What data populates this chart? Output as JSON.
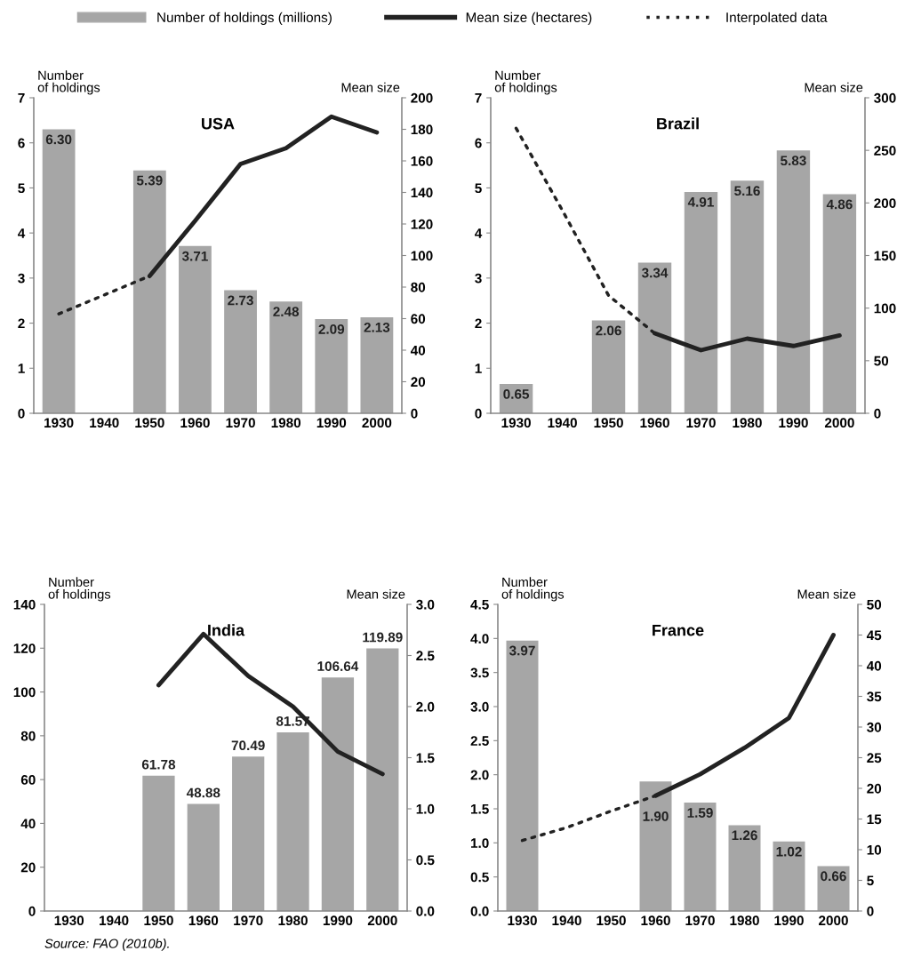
{
  "chart_data": [
    {
      "type": "bar",
      "title": "USA",
      "ylabel": "Number\nof holdings",
      "y2label": "Mean size",
      "legend": "top",
      "grid": false,
      "categories": [
        "1930",
        "1940",
        "1950",
        "1960",
        "1970",
        "1980",
        "1990",
        "2000"
      ],
      "ylim": [
        0,
        7
      ],
      "yticks": [
        0,
        1,
        2,
        3,
        4,
        5,
        6,
        7
      ],
      "y2lim": [
        0,
        200
      ],
      "y2ticks": [
        0,
        20,
        40,
        60,
        80,
        100,
        120,
        140,
        160,
        180,
        200
      ],
      "series": [
        {
          "name": "Number of holdings (millions)",
          "color": "#a6a6a6",
          "values": [
            6.3,
            null,
            5.39,
            3.71,
            2.73,
            2.48,
            2.09,
            2.13
          ],
          "value_labels": [
            "6.30",
            null,
            "5.39",
            "3.71",
            "2.73",
            "2.48",
            "2.09",
            "2.13"
          ]
        },
        {
          "name": "Mean size (hectares)",
          "type": "line",
          "axis": "y2",
          "color": "#222222",
          "line_style": "solid",
          "values": [
            null,
            null,
            87,
            122,
            158,
            168,
            188,
            178
          ]
        },
        {
          "name": "Interpolated data",
          "type": "line",
          "axis": "y2",
          "color": "#222222",
          "line_style": "dotted",
          "values": [
            63,
            75,
            87,
            null,
            null,
            null,
            null,
            null
          ]
        }
      ]
    },
    {
      "type": "bar",
      "title": "Brazil",
      "ylabel": "Number\nof holdings",
      "y2label": "Mean size",
      "grid": false,
      "categories": [
        "1930",
        "1940",
        "1950",
        "1960",
        "1970",
        "1980",
        "1990",
        "2000"
      ],
      "ylim": [
        0,
        7
      ],
      "yticks": [
        0,
        1,
        2,
        3,
        4,
        5,
        6,
        7
      ],
      "y2lim": [
        0,
        300
      ],
      "y2ticks": [
        0,
        50,
        100,
        150,
        200,
        250,
        300
      ],
      "series": [
        {
          "color": "#a6a6a6",
          "values": [
            0.65,
            null,
            2.06,
            3.34,
            4.91,
            5.16,
            5.83,
            4.86
          ],
          "value_labels": [
            "0.65",
            null,
            "2.06",
            "3.34",
            "4.91",
            "5.16",
            "5.83",
            "4.86"
          ]
        },
        {
          "type": "line",
          "axis": "y2",
          "color": "#222222",
          "line_style": "solid",
          "values": [
            null,
            null,
            null,
            76,
            60,
            71,
            64,
            74
          ]
        },
        {
          "type": "line",
          "axis": "y2",
          "color": "#222222",
          "line_style": "dotted",
          "values": [
            271,
            193,
            112,
            76,
            null,
            null,
            null,
            null
          ]
        }
      ]
    },
    {
      "type": "bar",
      "title": "India",
      "ylabel": "Number\nof holdings",
      "y2label": "Mean size",
      "grid": false,
      "categories": [
        "1930",
        "1940",
        "1950",
        "1960",
        "1970",
        "1980",
        "1990",
        "2000"
      ],
      "ylim": [
        0,
        140
      ],
      "yticks": [
        0,
        20,
        40,
        60,
        80,
        100,
        120,
        140
      ],
      "y2lim": [
        0,
        3
      ],
      "y2ticks": [
        {
          "value": 0,
          "label": "0.0"
        },
        0.5,
        {
          "value": 1,
          "label": "1.0"
        },
        1.5,
        {
          "value": 2,
          "label": "2.0"
        },
        2.5,
        {
          "value": 3,
          "label": "3.0"
        }
      ],
      "annotations": [
        "Source: FAO (2010b)."
      ],
      "series": [
        {
          "color": "#a6a6a6",
          "values": [
            null,
            null,
            61.78,
            48.88,
            70.49,
            81.57,
            106.64,
            119.89
          ],
          "value_labels": [
            null,
            null,
            "61.78",
            "48.88",
            "70.49",
            "81.57",
            "106.64",
            "119.89"
          ]
        },
        {
          "type": "line",
          "axis": "y2",
          "color": "#222222",
          "line_style": "solid",
          "values": [
            null,
            null,
            2.21,
            2.71,
            2.3,
            2.0,
            1.56,
            1.34
          ]
        }
      ]
    },
    {
      "type": "bar",
      "title": "France",
      "ylabel": "Number\nof holdings",
      "y2label": "Mean size",
      "grid": false,
      "categories": [
        "1930",
        "1940",
        "1950",
        "1960",
        "1970",
        "1980",
        "1990",
        "2000"
      ],
      "ylim": [
        0,
        4.5
      ],
      "yticks": [
        {
          "value": 0,
          "label": "0.0"
        },
        0.5,
        {
          "value": 1,
          "label": "1.0"
        },
        1.5,
        {
          "value": 2,
          "label": "2.0"
        },
        2.5,
        {
          "value": 3,
          "label": "3.0"
        },
        3.5,
        {
          "value": 4,
          "label": "4.0"
        },
        4.5
      ],
      "y2lim": [
        0,
        50
      ],
      "y2ticks": [
        0,
        5,
        10,
        15,
        20,
        25,
        30,
        35,
        40,
        45,
        50
      ],
      "series": [
        {
          "color": "#a6a6a6",
          "values": [
            3.97,
            null,
            null,
            1.9,
            1.59,
            1.26,
            1.02,
            0.66
          ],
          "value_labels": [
            "3.97",
            null,
            null,
            "1.90",
            "1.59",
            "1.26",
            "1.02",
            "0.66"
          ]
        },
        {
          "type": "line",
          "axis": "y2",
          "color": "#222222",
          "line_style": "solid",
          "values": [
            null,
            null,
            null,
            18.8,
            22.3,
            26.6,
            31.5,
            45.0
          ]
        },
        {
          "type": "line",
          "axis": "y2",
          "color": "#222222",
          "line_style": "dotted",
          "values": [
            11.5,
            13.6,
            16.3,
            18.8,
            null,
            null,
            null,
            null
          ]
        }
      ]
    }
  ]
}
